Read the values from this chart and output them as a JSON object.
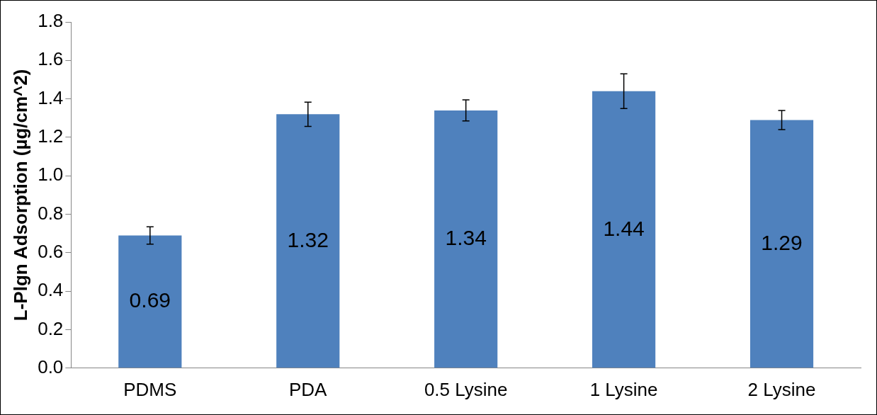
{
  "chart_data": {
    "type": "bar",
    "ylabel": "L-Plgn Adsorption (µg/cm^2)",
    "categories": [
      "PDMS",
      "PDA",
      "0.5 Lysine",
      "1 Lysine",
      "2 Lysine"
    ],
    "values": [
      0.69,
      1.32,
      1.34,
      1.44,
      1.29
    ],
    "errors": [
      0.045,
      0.063,
      0.055,
      0.09,
      0.05
    ],
    "color": "#4f81bd",
    "data_labels": true,
    "grid": false,
    "legend": false,
    "ylim": [
      0,
      1.8
    ],
    "yticks": [
      {
        "value": 0,
        "label": "0.0"
      },
      0.2,
      0.4,
      0.6,
      0.8,
      {
        "value": 1,
        "label": "1.0"
      },
      1.2,
      1.4,
      1.6,
      1.8
    ]
  }
}
